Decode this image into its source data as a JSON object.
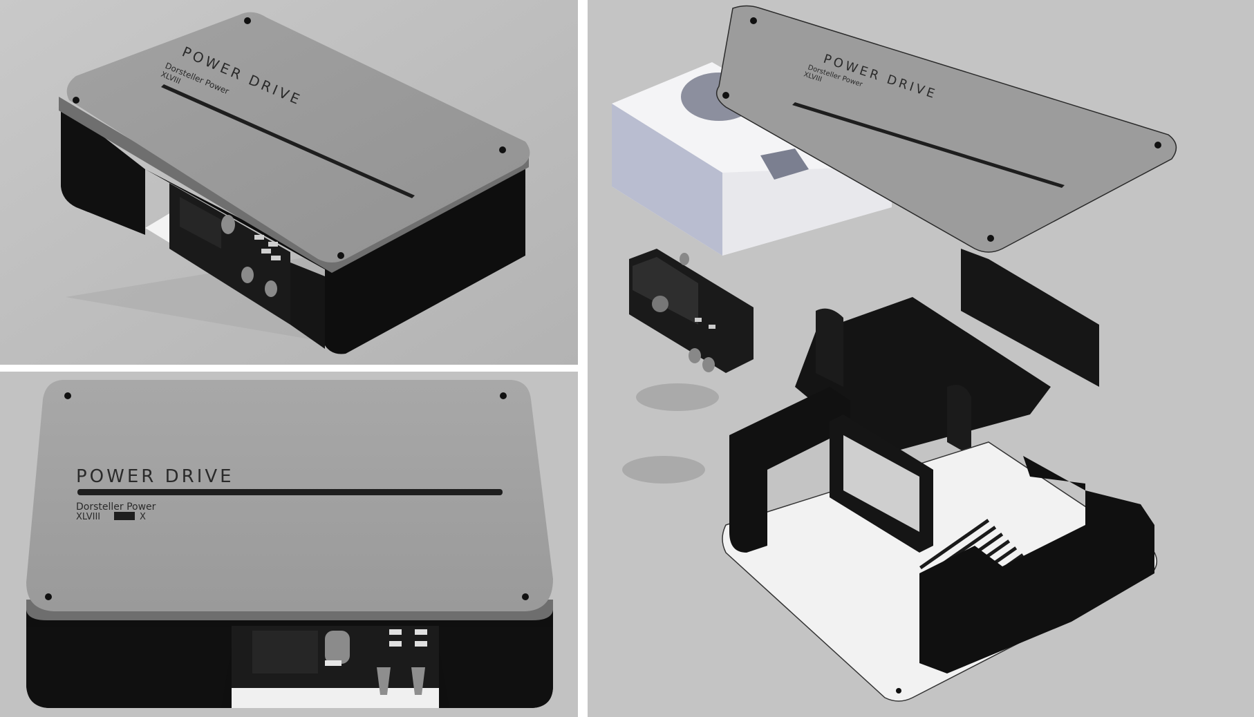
{
  "product": {
    "brand_name": "POWER DRIVE",
    "subtitle": "Dorsteller Power",
    "model_prefix": "XLVIII",
    "model_suffix": "X"
  },
  "views": [
    {
      "name": "isometric-view"
    },
    {
      "name": "front-view"
    },
    {
      "name": "exploded-view"
    }
  ],
  "colors": {
    "background": "#c0c0c0",
    "lid": "#9a9a9a",
    "body": "#111111",
    "base": "#f2f2f2",
    "box": "#f4f4f6"
  }
}
